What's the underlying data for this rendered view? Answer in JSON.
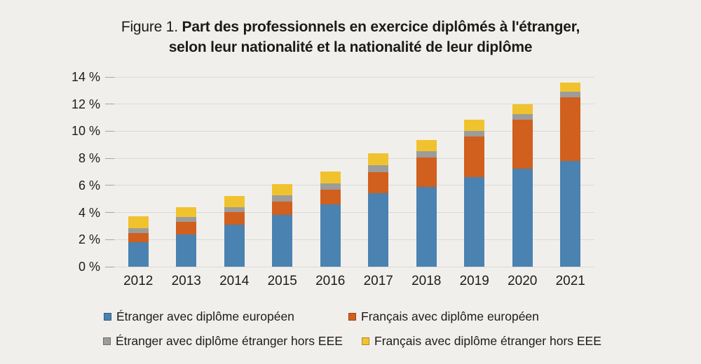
{
  "figure": {
    "label": "Figure 1.",
    "title_line1": "Part des professionnels en exercice diplômés à l'étranger,",
    "title_line2": "selon leur nationalité et la nationalité de leur diplôme"
  },
  "colors": {
    "background": "#f1efec",
    "gridline": "#dcdad6",
    "tick": "#a7a5a1",
    "text": "#1b1b1b"
  },
  "chart_data": {
    "type": "bar",
    "stacked": true,
    "title": "Part des professionnels en exercice diplômés à l'étranger, selon leur nationalité et la nationalité de leur diplôme",
    "categories": [
      "2012",
      "2013",
      "2014",
      "2015",
      "2016",
      "2017",
      "2018",
      "2019",
      "2020",
      "2021"
    ],
    "series": [
      {
        "name": "Étranger avec diplôme européen",
        "color": "#4a82b1",
        "values": [
          1.8,
          2.4,
          3.1,
          3.8,
          4.6,
          5.4,
          5.9,
          6.6,
          7.25,
          7.8
        ]
      },
      {
        "name": "Français avec diplôme européen",
        "color": "#d15f1d",
        "values": [
          0.7,
          0.9,
          0.95,
          1.0,
          1.1,
          1.6,
          2.15,
          3.0,
          3.6,
          4.7
        ]
      },
      {
        "name": "Étranger avec diplôme étranger hors EEE",
        "color": "#9c9c9a",
        "values": [
          0.35,
          0.35,
          0.35,
          0.45,
          0.45,
          0.5,
          0.5,
          0.4,
          0.4,
          0.4
        ]
      },
      {
        "name": "Français avec diplôme étranger hors EEE",
        "color": "#f0c32e",
        "values": [
          0.85,
          0.75,
          0.8,
          0.85,
          0.9,
          0.85,
          0.8,
          0.85,
          0.75,
          0.7
        ]
      }
    ],
    "totals": [
      3.7,
      4.4,
      5.2,
      6.1,
      7.05,
      8.35,
      9.35,
      10.85,
      12.0,
      13.6
    ],
    "xlabel": "",
    "ylabel": "",
    "ylim": [
      0,
      14
    ],
    "yticks": [
      "0 %",
      "2 %",
      "4 %",
      "6 %",
      "8 %",
      "10 %",
      "12 %",
      "14 %"
    ],
    "ytick_values": [
      0,
      2,
      4,
      6,
      8,
      10,
      12,
      14
    ],
    "grid": true,
    "legend_position": "bottom",
    "legend_rows": [
      [
        0,
        1
      ],
      [
        2,
        3
      ]
    ]
  }
}
